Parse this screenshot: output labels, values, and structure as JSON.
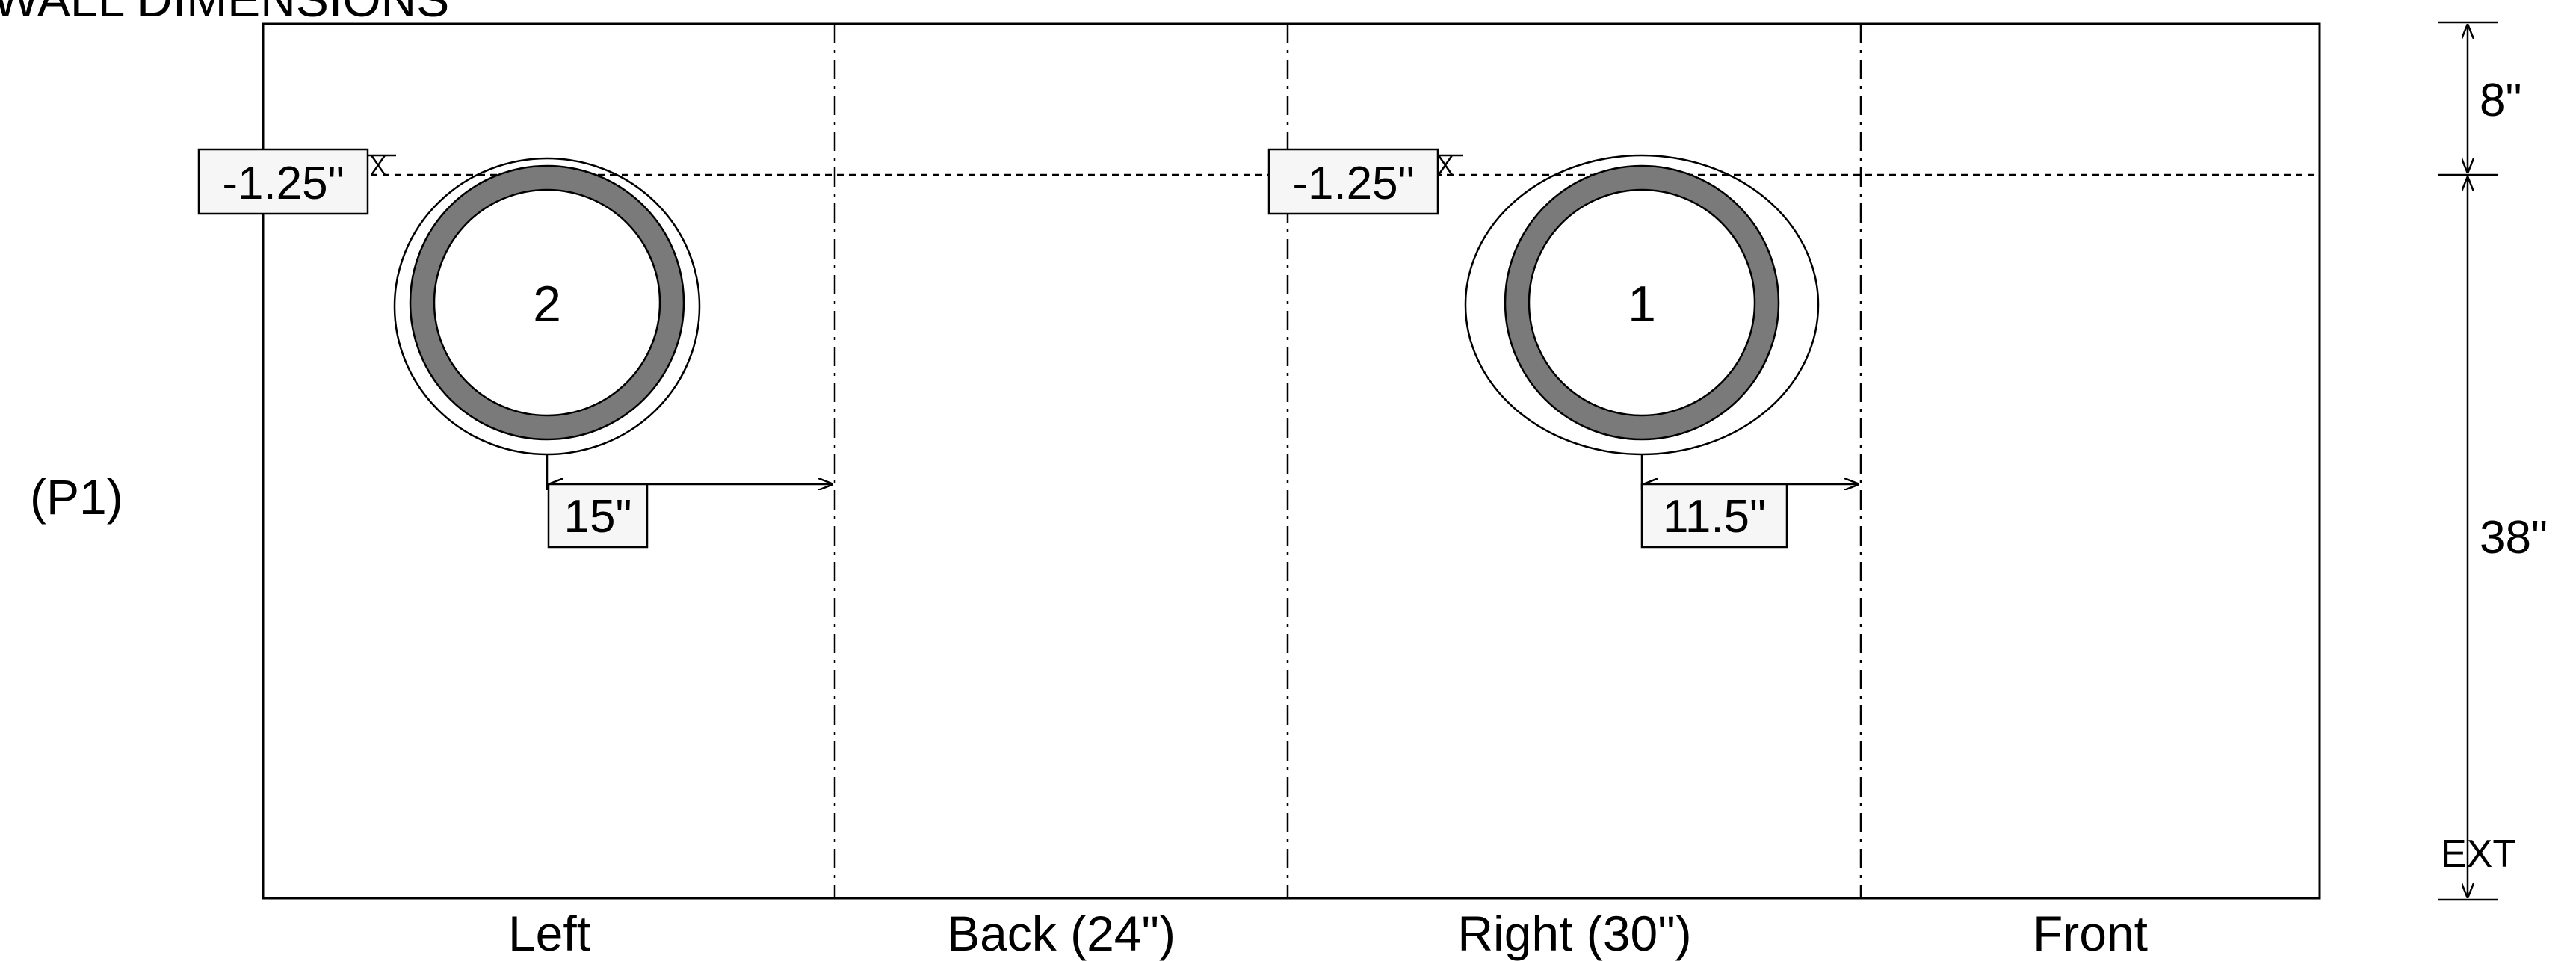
{
  "header": {
    "title": "WALL DIMENSIONS"
  },
  "panel": {
    "label": "(P1)"
  },
  "walls": {
    "left": "Left",
    "back": "Back (24\")",
    "right": "Right (30\")",
    "front": "Front"
  },
  "vertical_dims": {
    "top_offset": "8\"",
    "height": "38\"",
    "bottom_tag": "EXT"
  },
  "holes": [
    {
      "number": "2",
      "top_offset": "-1.25\"",
      "side_offset": "15\""
    },
    {
      "number": "1",
      "top_offset": "-1.25\"",
      "side_offset": "11.5\""
    }
  ],
  "colors": {
    "ring": "#7a7a7a",
    "line": "#000000",
    "tag_bg": "#f6f6f6"
  }
}
